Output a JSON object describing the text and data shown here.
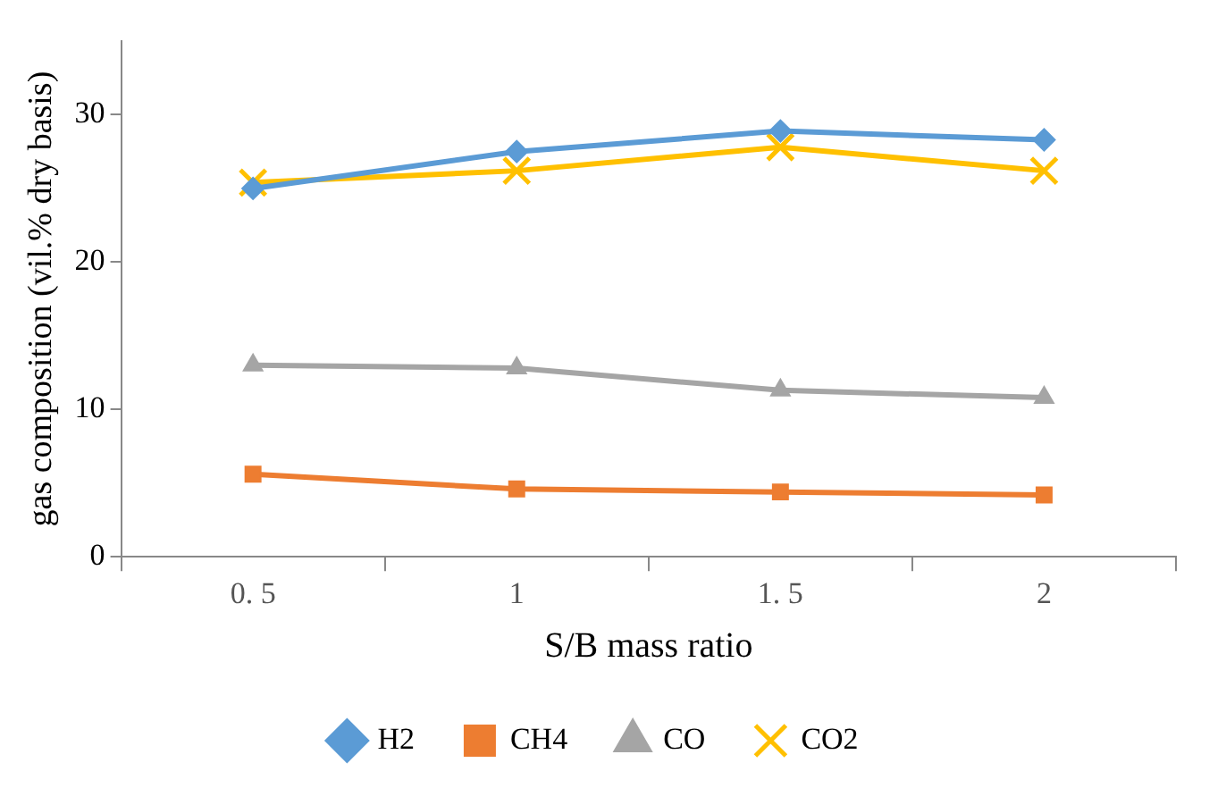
{
  "chart_data": {
    "type": "line",
    "xlabel": "S/B mass ratio",
    "ylabel": "gas composition (vil.% dry basis)",
    "categories": [
      "0. 5",
      "1",
      "1. 5",
      "2"
    ],
    "series": [
      {
        "name": "H2",
        "color": "#5b9bd5",
        "marker": "diamond",
        "values": [
          25.0,
          27.5,
          28.9,
          28.3
        ]
      },
      {
        "name": "CH4",
        "color": "#ed7d31",
        "marker": "square",
        "values": [
          5.6,
          4.6,
          4.4,
          4.2
        ]
      },
      {
        "name": "CO",
        "color": "#a5a5a5",
        "marker": "triangle",
        "values": [
          13.0,
          12.8,
          11.3,
          10.8
        ]
      },
      {
        "name": "CO2",
        "color": "#ffc000",
        "marker": "cross",
        "values": [
          25.4,
          26.2,
          27.8,
          26.2
        ]
      }
    ],
    "ylim": [
      0,
      35
    ],
    "yticks": [
      0,
      10,
      20,
      30
    ],
    "grid": false,
    "legend": "bottom",
    "line_style": "solid"
  }
}
